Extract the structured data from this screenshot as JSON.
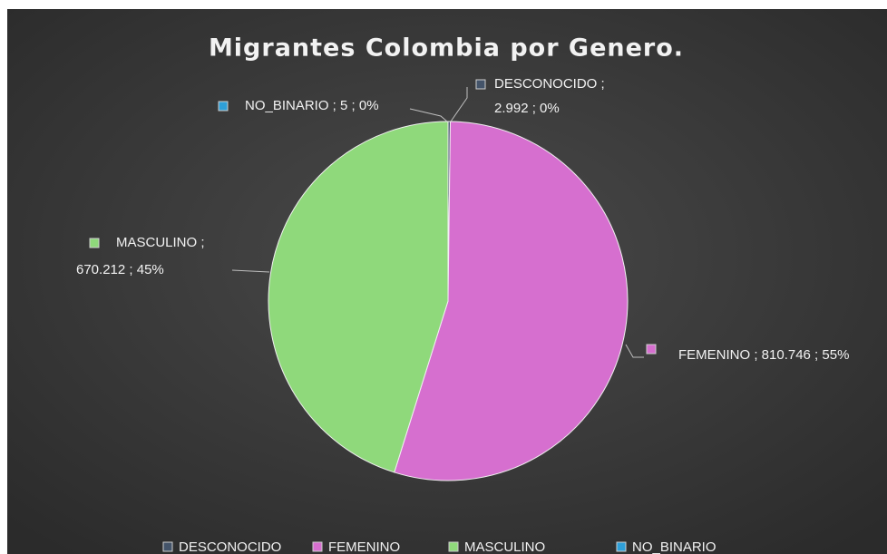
{
  "chart_data": {
    "type": "pie",
    "title": "Migrantes Colombia por Genero.",
    "categories": [
      "DESCONOCIDO",
      "FEMENINO",
      "MASCULINO",
      "NO_BINARIO"
    ],
    "values": [
      2992,
      810746,
      670212,
      5
    ],
    "colors": [
      "#44546a",
      "#d66fcf",
      "#8fd97b",
      "#2e9fd8"
    ],
    "data_labels": [
      [
        "DESCONOCIDO ;",
        "2.992 ; 0%"
      ],
      [
        "FEMENINO ; 810.746 ; 55%"
      ],
      [
        "MASCULINO ;",
        "670.212 ; 45%"
      ],
      [
        "NO_BINARIO ; 5 ; 0%"
      ]
    ],
    "legend": "bottom"
  }
}
